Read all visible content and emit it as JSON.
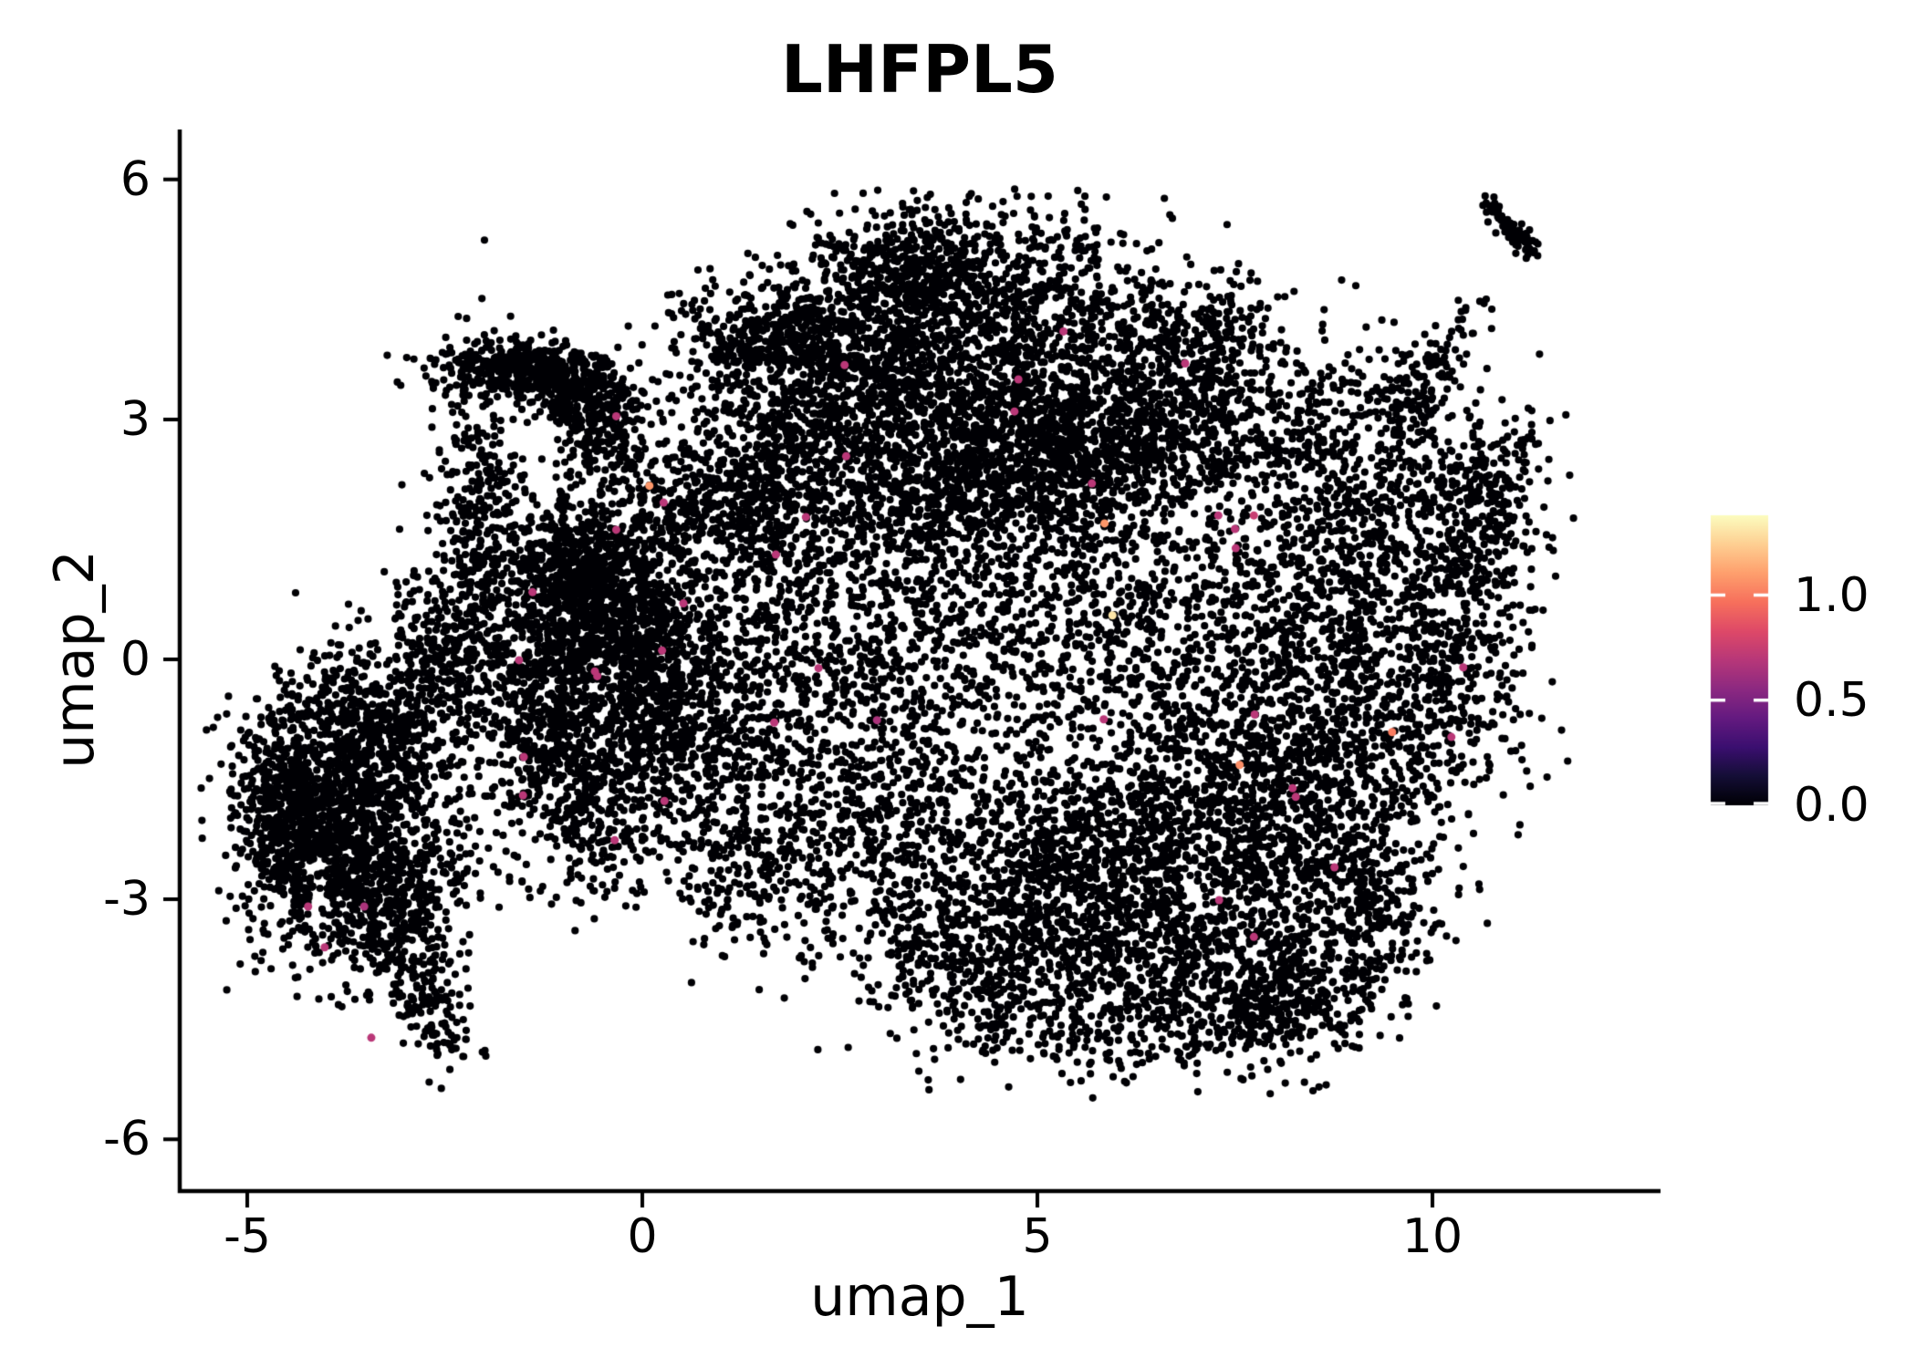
{
  "title": {
    "text": "LHFPL5"
  },
  "axes": {
    "x": {
      "label": "umap_1",
      "ticks": [
        "-5",
        "0",
        "5",
        "10"
      ],
      "tick_values": [
        -5,
        0,
        5,
        10
      ],
      "range": [
        -5.85,
        12.89
      ]
    },
    "y": {
      "label": "umap_2",
      "ticks": [
        "6",
        "3",
        "0",
        "-3",
        "-6"
      ],
      "tick_values": [
        6,
        3,
        0,
        -3,
        -6
      ],
      "range": [
        -6.65,
        6.62
      ]
    }
  },
  "colorbar": {
    "labels": [
      "1.0",
      "0.5",
      "0.0"
    ],
    "tick_values": [
      1.0,
      0.5,
      0.0
    ],
    "vmin": 0.0,
    "vmax": 1.38,
    "colormap": "magma",
    "stops": [
      "#000004",
      "#140e36",
      "#3b0f70",
      "#641a80",
      "#8c2981",
      "#b73779",
      "#de4968",
      "#f7705c",
      "#fe9f6d",
      "#fecf92",
      "#fcfdbf"
    ],
    "tick_mark_color": "#ffffff"
  },
  "chart_data": {
    "type": "scatter",
    "title": "LHFPL5",
    "xlabel": "umap_1",
    "ylabel": "umap_2",
    "xlim": [
      -5.85,
      12.89
    ],
    "ylim": [
      -6.65,
      6.62
    ],
    "grid": false,
    "legend_position": "right-colorbar",
    "color_scale": {
      "name": "magma",
      "min": 0.0,
      "max": 1.38,
      "ticks": [
        0.0,
        0.5,
        1.0
      ]
    },
    "point_color_default": "#000004",
    "point_radius_px": 4.1,
    "n_points_approx": 21200,
    "generator": {
      "seed": 20240613,
      "bounds": {
        "x": [
          -5.65,
          11.8
        ],
        "y": [
          -5.5,
          5.9
        ]
      },
      "clusters": [
        {
          "cx": -4.15,
          "cy": -2.1,
          "sx": 0.5,
          "sy": 0.75,
          "n": 850
        },
        {
          "cx": -3.6,
          "cy": -0.85,
          "sx": 0.5,
          "sy": 0.55,
          "n": 450
        },
        {
          "cx": -4.55,
          "cy": -1.7,
          "sx": 0.28,
          "sy": 0.55,
          "n": 280
        },
        {
          "cx": -3.25,
          "cy": -3.05,
          "sx": 0.45,
          "sy": 0.5,
          "n": 420
        },
        {
          "cx": -2.95,
          "cy": -1.9,
          "sx": 0.5,
          "sy": 0.8,
          "n": 380
        },
        {
          "cx": -2.05,
          "cy": 1.7,
          "sx": 0.26,
          "sy": 1.05,
          "n": 360
        },
        {
          "cx": -2.55,
          "cy": 0.15,
          "sx": 0.38,
          "sy": 0.5,
          "n": 260
        },
        {
          "cx": -1.55,
          "cy": 3.62,
          "sx": 0.52,
          "sy": 0.17,
          "n": 420
        },
        {
          "cx": -0.8,
          "cy": 3.3,
          "sx": 0.33,
          "sy": 0.24,
          "n": 220
        },
        {
          "cx": -0.4,
          "cy": 2.85,
          "sx": 0.3,
          "sy": 0.3,
          "n": 160
        },
        {
          "cx": -0.75,
          "cy": 1.0,
          "sx": 0.55,
          "sy": 0.6,
          "n": 950
        },
        {
          "cx": -0.15,
          "cy": 0.25,
          "sx": 0.5,
          "sy": 0.5,
          "n": 480
        },
        {
          "cx": -1.35,
          "cy": -0.55,
          "sx": 0.45,
          "sy": 0.6,
          "n": 400
        },
        {
          "cx": -0.6,
          "cy": -1.65,
          "sx": 0.6,
          "sy": 0.7,
          "n": 520
        },
        {
          "cx": 0.35,
          "cy": -0.6,
          "sx": 0.6,
          "sy": 0.7,
          "n": 430
        },
        {
          "cx": 4.25,
          "cy": 4.6,
          "sx": 1.15,
          "sy": 0.55,
          "n": 800
        },
        {
          "cx": 2.7,
          "cy": 3.6,
          "sx": 0.8,
          "sy": 0.55,
          "n": 560
        },
        {
          "cx": 4.7,
          "cy": 3.35,
          "sx": 1.05,
          "sy": 0.5,
          "n": 650
        },
        {
          "cx": 5.6,
          "cy": 2.55,
          "sx": 1.15,
          "sy": 0.5,
          "n": 950
        },
        {
          "cx": 3.6,
          "cy": 2.25,
          "sx": 0.9,
          "sy": 0.5,
          "n": 520
        },
        {
          "cx": 1.6,
          "cy": 2.6,
          "sx": 0.7,
          "sy": 0.65,
          "n": 420
        },
        {
          "cx": 6.9,
          "cy": 3.85,
          "sx": 0.7,
          "sy": 0.55,
          "n": 420
        },
        {
          "cx": 1.2,
          "cy": 3.95,
          "sx": 0.45,
          "sy": 0.4,
          "n": 200
        },
        {
          "cx": 3.3,
          "cy": 4.85,
          "sx": 0.5,
          "sy": 0.38,
          "n": 280
        },
        {
          "cx": 2.05,
          "cy": 4.15,
          "sx": 0.33,
          "sy": 0.28,
          "n": 160
        },
        {
          "cx": 2.1,
          "cy": 1.1,
          "sx": 0.95,
          "sy": 0.75,
          "n": 420
        },
        {
          "cx": 4.5,
          "cy": 1.2,
          "sx": 1.0,
          "sy": 0.75,
          "n": 480
        },
        {
          "cx": 6.5,
          "cy": 0.3,
          "sx": 1.0,
          "sy": 0.9,
          "n": 580
        },
        {
          "cx": 3.4,
          "cy": -0.45,
          "sx": 1.0,
          "sy": 0.8,
          "n": 430
        },
        {
          "cx": 1.3,
          "cy": -0.7,
          "sx": 0.8,
          "sy": 0.8,
          "n": 380
        },
        {
          "cx": 0.9,
          "cy": 1.85,
          "sx": 0.75,
          "sy": 0.45,
          "n": 380
        },
        {
          "cx": 6.8,
          "cy": -2.4,
          "sx": 1.25,
          "sy": 0.95,
          "n": 1300
        },
        {
          "cx": 5.2,
          "cy": -2.8,
          "sx": 0.9,
          "sy": 0.8,
          "n": 650
        },
        {
          "cx": 8.3,
          "cy": -1.4,
          "sx": 0.8,
          "sy": 0.8,
          "n": 560
        },
        {
          "cx": 4.4,
          "cy": -3.9,
          "sx": 0.9,
          "sy": 0.5,
          "n": 430
        },
        {
          "cx": 7.6,
          "cy": -3.95,
          "sx": 0.85,
          "sy": 0.5,
          "n": 400
        },
        {
          "cx": 2.9,
          "cy": -2.2,
          "sx": 0.8,
          "sy": 0.75,
          "n": 430
        },
        {
          "cx": 1.35,
          "cy": -2.6,
          "sx": 0.6,
          "sy": 0.55,
          "n": 230
        },
        {
          "cx": 6.3,
          "cy": -4.65,
          "sx": 0.9,
          "sy": 0.3,
          "n": 200
        },
        {
          "cx": 9.2,
          "cy": -3.0,
          "sx": 0.5,
          "sy": 0.55,
          "n": 250
        },
        {
          "cx": 8.35,
          "cy": -4.35,
          "sx": 0.5,
          "sy": 0.35,
          "n": 180
        },
        {
          "cx": 9.6,
          "cy": -0.6,
          "sx": 0.75,
          "sy": 0.85,
          "n": 430
        },
        {
          "cx": 10.4,
          "cy": 0.8,
          "sx": 0.5,
          "sy": 0.85,
          "n": 330
        },
        {
          "cx": 9.3,
          "cy": 1.7,
          "sx": 0.65,
          "sy": 0.75,
          "n": 360
        },
        {
          "cx": 10.75,
          "cy": 2.2,
          "sx": 0.4,
          "sy": 0.5,
          "n": 190
        },
        {
          "cx": 8.4,
          "cy": 0.6,
          "sx": 0.7,
          "sy": 0.8,
          "n": 360
        },
        {
          "cx": 8.0,
          "cy": 2.8,
          "sx": 0.7,
          "sy": 0.55,
          "n": 280
        },
        {
          "cx": 9.8,
          "cy": 3.3,
          "sx": 0.35,
          "sy": 0.35,
          "n": 90
        }
      ],
      "lines": [
        {
          "x1": -3.05,
          "y1": -3.7,
          "x2": -2.35,
          "y2": -4.95,
          "spread": 0.2,
          "n": 150
        },
        {
          "x1": 9.55,
          "y1": 2.75,
          "x2": 10.55,
          "y2": 4.45,
          "spread": 0.15,
          "n": 90
        },
        {
          "x1": 10.72,
          "y1": 5.68,
          "x2": 11.25,
          "y2": 5.1,
          "spread": 0.07,
          "n": 80
        }
      ]
    },
    "highlights": [
      {
        "x": -0.33,
        "y": 3.04,
        "v": 0.7
      },
      {
        "x": 2.56,
        "y": 3.68,
        "v": 0.7
      },
      {
        "x": 2.58,
        "y": 2.54,
        "v": 0.7
      },
      {
        "x": 0.09,
        "y": 2.17,
        "v": 1.08
      },
      {
        "x": 0.27,
        "y": 1.96,
        "v": 0.7
      },
      {
        "x": 2.07,
        "y": 1.78,
        "v": 0.7
      },
      {
        "x": 1.69,
        "y": 1.31,
        "v": 0.7
      },
      {
        "x": -1.39,
        "y": 0.84,
        "v": 0.7
      },
      {
        "x": 0.52,
        "y": 0.7,
        "v": 0.7
      },
      {
        "x": -1.56,
        "y": -0.01,
        "v": 0.7
      },
      {
        "x": -0.6,
        "y": -0.15,
        "v": 0.7
      },
      {
        "x": -0.33,
        "y": 1.62,
        "v": 0.7
      },
      {
        "x": 0.25,
        "y": 0.11,
        "v": 0.7
      },
      {
        "x": 2.23,
        "y": -0.11,
        "v": 0.7
      },
      {
        "x": 1.67,
        "y": -0.79,
        "v": 0.7
      },
      {
        "x": -1.5,
        "y": -1.22,
        "v": 0.7
      },
      {
        "x": 2.97,
        "y": -0.76,
        "v": 0.65
      },
      {
        "x": 5.33,
        "y": 4.1,
        "v": 0.7
      },
      {
        "x": 6.87,
        "y": 3.7,
        "v": 0.7
      },
      {
        "x": 4.76,
        "y": 3.5,
        "v": 0.7
      },
      {
        "x": 4.71,
        "y": 3.1,
        "v": 0.7
      },
      {
        "x": 5.69,
        "y": 2.2,
        "v": 0.7
      },
      {
        "x": 5.85,
        "y": 1.7,
        "v": 1.08
      },
      {
        "x": 7.29,
        "y": 1.8,
        "v": 0.7
      },
      {
        "x": 7.74,
        "y": 1.8,
        "v": 0.75
      },
      {
        "x": 7.5,
        "y": 1.63,
        "v": 0.7
      },
      {
        "x": 7.51,
        "y": 1.39,
        "v": 0.7
      },
      {
        "x": 5.95,
        "y": 0.55,
        "v": 1.31
      },
      {
        "x": 10.39,
        "y": -0.1,
        "v": 0.7
      },
      {
        "x": 5.84,
        "y": -0.75,
        "v": 0.7
      },
      {
        "x": 7.56,
        "y": -1.32,
        "v": 1.05
      },
      {
        "x": 10.24,
        "y": -0.97,
        "v": 0.7
      },
      {
        "x": -0.57,
        "y": -0.21,
        "v": 0.7
      },
      {
        "x": -1.51,
        "y": -1.7,
        "v": 0.7
      },
      {
        "x": 0.28,
        "y": -1.77,
        "v": 0.7
      },
      {
        "x": -0.35,
        "y": -2.26,
        "v": 0.7
      },
      {
        "x": -4.23,
        "y": -3.09,
        "v": 0.7
      },
      {
        "x": -3.52,
        "y": -3.09,
        "v": 0.65
      },
      {
        "x": -4.02,
        "y": -3.6,
        "v": 0.7
      },
      {
        "x": -3.43,
        "y": -4.73,
        "v": 0.7
      },
      {
        "x": 7.75,
        "y": -0.69,
        "v": 0.7
      },
      {
        "x": 9.49,
        "y": -0.91,
        "v": 1.0
      },
      {
        "x": 8.23,
        "y": -1.61,
        "v": 0.7
      },
      {
        "x": 8.27,
        "y": -1.72,
        "v": 0.7
      },
      {
        "x": 8.76,
        "y": -2.6,
        "v": 0.7
      },
      {
        "x": 7.3,
        "y": -3.01,
        "v": 0.7
      },
      {
        "x": 7.74,
        "y": -3.47,
        "v": 0.7
      }
    ]
  }
}
